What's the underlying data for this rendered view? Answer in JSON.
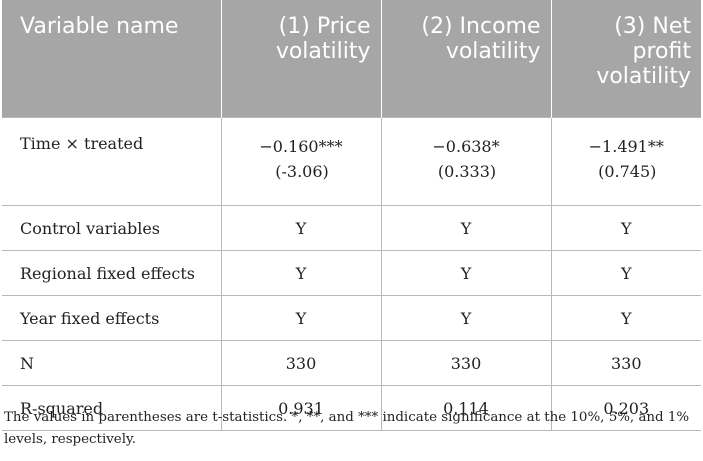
{
  "table": {
    "headers": [
      {
        "lines": [
          "Variable name"
        ]
      },
      {
        "lines": [
          "(1) Price",
          "volatility"
        ]
      },
      {
        "lines": [
          "(2) Income",
          "volatility"
        ]
      },
      {
        "lines": [
          "(3) Net",
          "profit",
          "volatility"
        ]
      }
    ],
    "rows": [
      {
        "label": "Time × treated",
        "cells": [
          {
            "coef": "−0.160***",
            "se": "(-3.06)"
          },
          {
            "coef": "−0.638*",
            "se": "(0.333)"
          },
          {
            "coef": "−1.491**",
            "se": "(0.745)"
          }
        ]
      },
      {
        "label": "Control variables",
        "cells": [
          "Y",
          "Y",
          "Y"
        ]
      },
      {
        "label": "Regional fixed effects",
        "cells": [
          "Y",
          "Y",
          "Y"
        ]
      },
      {
        "label": "Year fixed effects",
        "cells": [
          "Y",
          "Y",
          "Y"
        ]
      },
      {
        "label": "N",
        "cells": [
          "330",
          "330",
          "330"
        ]
      },
      {
        "label": "R-squared",
        "cells": [
          "0.931",
          "0.114",
          "0.203"
        ]
      }
    ]
  },
  "note": "The values in parentheses are t-statistics. *, **, and *** indicate significance at the 10%, 5%, and 1% levels, respectively."
}
